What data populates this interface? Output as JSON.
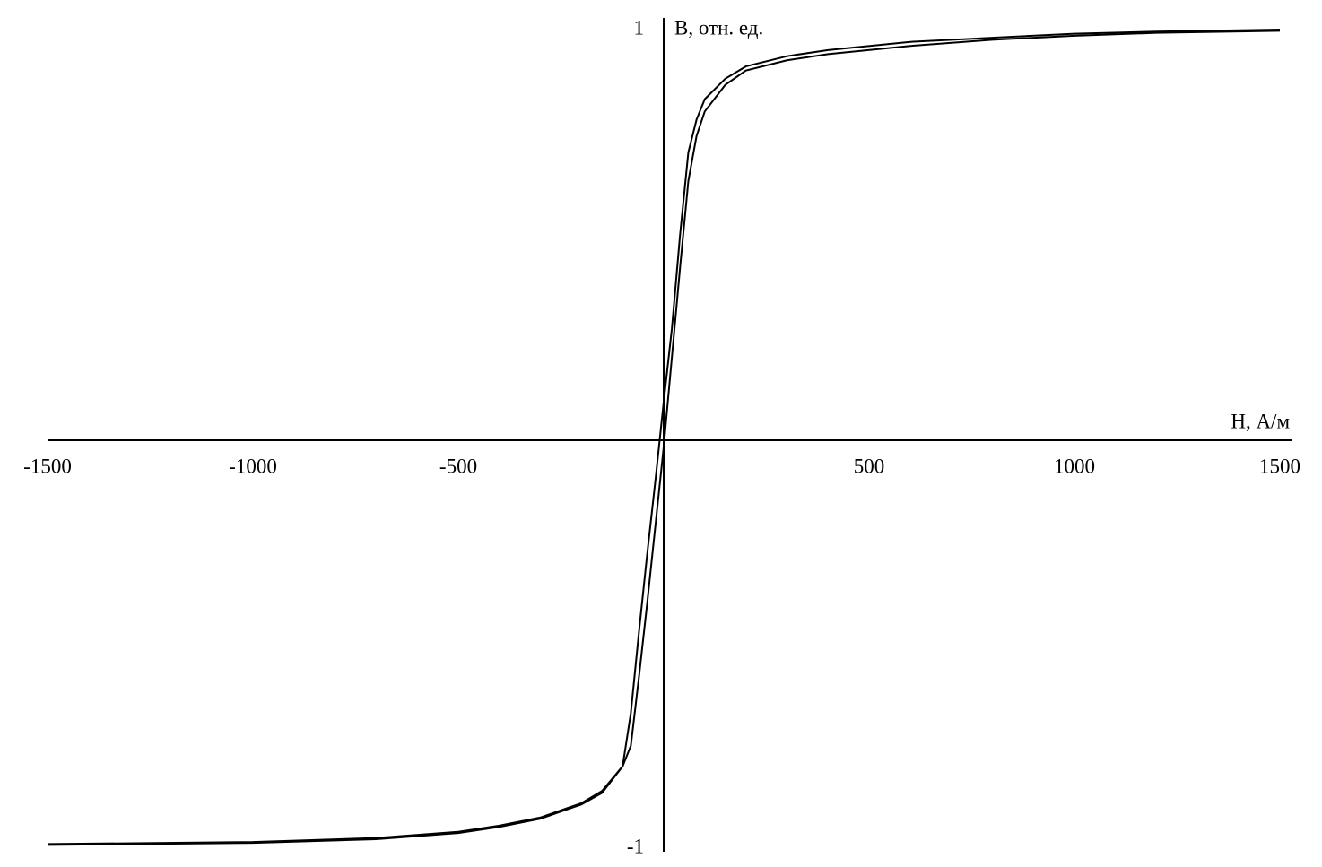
{
  "chart_data": {
    "type": "line",
    "x_label": "H, А/м",
    "y_label": "B, отн. ед.",
    "x": [
      -1500,
      -1000,
      -700,
      -500,
      -400,
      -300,
      -200,
      -150,
      -100,
      -80,
      -60,
      -40,
      -20,
      0,
      20,
      40,
      60,
      80,
      100,
      150,
      200,
      300,
      400,
      600,
      800,
      1000,
      1200,
      1500
    ],
    "series": [
      {
        "color": "#000000",
        "values": [
          -0.99,
          -0.985,
          -0.975,
          -0.96,
          -0.945,
          -0.925,
          -0.89,
          -0.86,
          -0.8,
          -0.67,
          -0.47,
          -0.28,
          -0.1,
          0.09,
          0.27,
          0.5,
          0.7,
          0.78,
          0.83,
          0.88,
          0.91,
          0.935,
          0.95,
          0.97,
          0.98,
          0.99,
          0.995,
          1.0
        ]
      },
      {
        "color": "#000000",
        "values": [
          -0.992,
          -0.987,
          -0.978,
          -0.963,
          -0.948,
          -0.928,
          -0.893,
          -0.865,
          -0.8,
          -0.75,
          -0.58,
          -0.4,
          -0.21,
          -0.02,
          0.2,
          0.42,
          0.63,
          0.74,
          0.8,
          0.865,
          0.9,
          0.925,
          0.94,
          0.96,
          0.975,
          0.985,
          0.992,
          0.997
        ]
      }
    ],
    "xlim": [
      -1500,
      1500
    ],
    "xticks": [
      -1500,
      -1000,
      -500,
      500,
      1000,
      1500
    ],
    "ylim": [
      -1,
      1
    ],
    "yticks": [
      1,
      -1
    ],
    "grid": false
  }
}
